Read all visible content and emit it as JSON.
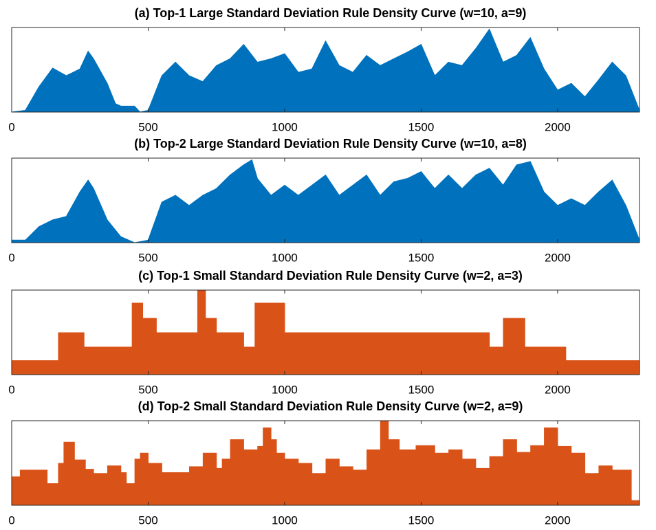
{
  "chart_data": [
    {
      "type": "area",
      "title": "(a) Top-1 Large Standard Deviation Rule Density Curve (w=10, a=9)",
      "color": "#0072bd",
      "x": [
        0,
        50,
        100,
        150,
        200,
        250,
        280,
        300,
        350,
        380,
        400,
        450,
        470,
        500,
        550,
        600,
        650,
        700,
        750,
        800,
        850,
        900,
        950,
        1000,
        1050,
        1100,
        1150,
        1200,
        1250,
        1300,
        1350,
        1400,
        1450,
        1500,
        1550,
        1600,
        1650,
        1700,
        1750,
        1800,
        1850,
        1900,
        1950,
        2000,
        2050,
        2100,
        2150,
        2200,
        2250,
        2300
      ],
      "values": [
        0,
        0.02,
        0.3,
        0.52,
        0.43,
        0.51,
        0.72,
        0.63,
        0.34,
        0.1,
        0.07,
        0.07,
        0,
        0.02,
        0.43,
        0.59,
        0.43,
        0.36,
        0.55,
        0.63,
        0.8,
        0.59,
        0.63,
        0.69,
        0.47,
        0.51,
        0.84,
        0.55,
        0.47,
        0.67,
        0.55,
        0.63,
        0.71,
        0.8,
        0.43,
        0.59,
        0.55,
        0.75,
        0.98,
        0.59,
        0.67,
        0.88,
        0.51,
        0.26,
        0.34,
        0.18,
        0.38,
        0.59,
        0.43,
        0.02
      ],
      "xlim": [
        0,
        2300
      ],
      "xticks": [
        0,
        500,
        1000,
        1500,
        2000
      ],
      "ylim": [
        0,
        1
      ]
    },
    {
      "type": "area",
      "title": "(b) Top-2 Large Standard Deviation Rule Density Curve (w=10, a=8)",
      "color": "#0072bd",
      "x": [
        0,
        50,
        100,
        150,
        200,
        250,
        280,
        300,
        350,
        400,
        450,
        500,
        550,
        600,
        650,
        700,
        750,
        800,
        850,
        880,
        900,
        950,
        1000,
        1050,
        1100,
        1150,
        1200,
        1250,
        1300,
        1350,
        1400,
        1450,
        1500,
        1550,
        1600,
        1650,
        1700,
        1750,
        1800,
        1850,
        1900,
        1950,
        2000,
        2050,
        2100,
        2150,
        2200,
        2250,
        2300
      ],
      "values": [
        0.03,
        0.03,
        0.19,
        0.27,
        0.31,
        0.6,
        0.74,
        0.64,
        0.27,
        0.07,
        0,
        0.03,
        0.48,
        0.56,
        0.44,
        0.56,
        0.64,
        0.8,
        0.92,
        0.98,
        0.76,
        0.56,
        0.68,
        0.56,
        0.68,
        0.8,
        0.56,
        0.68,
        0.8,
        0.56,
        0.72,
        0.76,
        0.84,
        0.64,
        0.8,
        0.64,
        0.8,
        0.88,
        0.68,
        0.92,
        0.96,
        0.6,
        0.44,
        0.52,
        0.44,
        0.6,
        0.74,
        0.44,
        0.03
      ],
      "xlim": [
        0,
        2300
      ],
      "xticks": [
        0,
        500,
        1000,
        1500,
        2000
      ],
      "ylim": [
        0,
        1
      ]
    },
    {
      "type": "step",
      "title": "(c) Top-1 Small Standard Deviation Rule Density Curve (w=2, a=3)",
      "color": "#d95319",
      "x": [
        0,
        170,
        265,
        440,
        480,
        530,
        680,
        710,
        750,
        850,
        890,
        1000,
        1750,
        1800,
        1880,
        2030
      ],
      "values": [
        0.17,
        0.5,
        0.33,
        0.85,
        0.67,
        0.5,
        1,
        0.67,
        0.5,
        0.33,
        0.85,
        0.5,
        0.33,
        0.67,
        0.33,
        0.17
      ],
      "xlim": [
        0,
        2300
      ],
      "xticks": [
        0,
        500,
        1000,
        1500,
        2000
      ],
      "ylim": [
        0,
        1
      ]
    },
    {
      "type": "step",
      "title": "(d) Top-2 Small Standard Deviation Rule Density Curve (w=2, a=9)",
      "color": "#d95319",
      "x": [
        0,
        30,
        130,
        170,
        190,
        230,
        270,
        300,
        350,
        400,
        420,
        450,
        470,
        500,
        550,
        650,
        700,
        750,
        770,
        800,
        850,
        900,
        920,
        950,
        970,
        1000,
        1050,
        1100,
        1150,
        1200,
        1250,
        1300,
        1350,
        1380,
        1420,
        1480,
        1550,
        1600,
        1650,
        1700,
        1750,
        1800,
        1850,
        1900,
        1950,
        2000,
        2050,
        2100,
        2150,
        2200,
        2270
      ],
      "values": [
        0.34,
        0.42,
        0.26,
        0.5,
        0.75,
        0.54,
        0.43,
        0.38,
        0.47,
        0.39,
        0.26,
        0.55,
        0.62,
        0.5,
        0.39,
        0.46,
        0.62,
        0.44,
        0.55,
        0.78,
        0.66,
        0.7,
        0.92,
        0.78,
        0.62,
        0.55,
        0.5,
        0.38,
        0.55,
        0.46,
        0.42,
        0.66,
        1,
        0.78,
        0.66,
        0.71,
        0.62,
        0.66,
        0.55,
        0.44,
        0.58,
        0.78,
        0.63,
        0.71,
        0.92,
        0.7,
        0.62,
        0.38,
        0.47,
        0.42,
        0.06
      ],
      "xlim": [
        0,
        2300
      ],
      "xticks": [
        0,
        500,
        1000,
        1500,
        2000
      ],
      "ylim": [
        0,
        1
      ]
    }
  ]
}
